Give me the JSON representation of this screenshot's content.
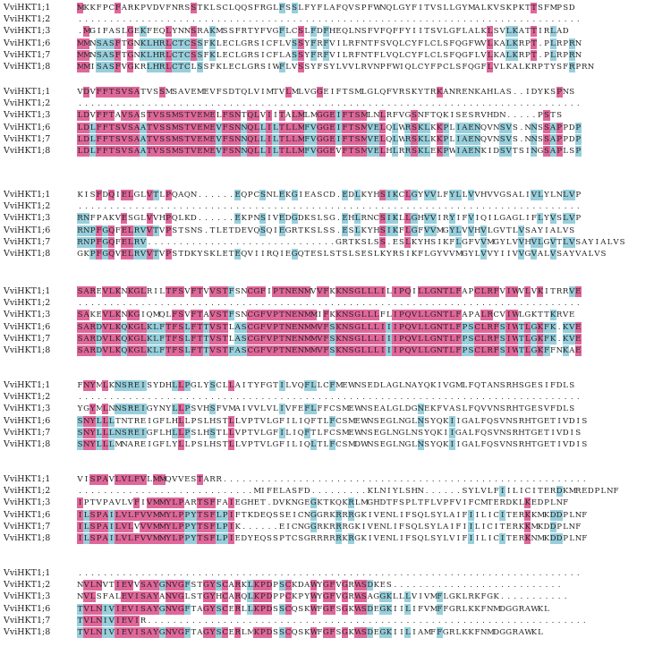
{
  "alignment": {
    "colors": {
      "identical": "#e0679a",
      "similar": "#97cfdc",
      "background": "#ffffff"
    },
    "blocks": [
      {
        "rows": [
          {
            "name": "VviHKT1;1",
            "seq": "MKKFPCFARKPVDVFNRSSTKLSCLQQSFRGLFSSLFYFLAFQVSPFWNQLGYFITVSLLGYMALKVSKPKTTSFMPSD"
          },
          {
            "name": "VviHKT1;2",
            "seq": "................................................................................"
          },
          {
            "name": "VviHKT1;3",
            "seq": ".MGIFASLGEKFEQLYNNSRAKMSSFRTYFVGFLCSLFDFHEQLNSFVFQFFYIITSVLGFLALKLSVLKATTIRLAD"
          },
          {
            "name": "VviHKT1;6",
            "seq": "MMNSASFTGNKLHRLCTCSSFKLECLGRSICFLVSSYFRFVILRFNTFSVQLCYFLCLSFQGFWVLKALKRPT.PLRPRN"
          },
          {
            "name": "VviHKT1;7",
            "seq": "MMNSASFTGNKLHRLCTCSSFKLECLGRSICFLASSYFRFVILRFNTFLVQLCYFLCLSFQGFLVLKALKRPT.PLRPRN"
          },
          {
            "name": "VviHKT1;8",
            "seq": "MMISASFVGKRLHRLCTCLSSFKLECLGRSIWFLVSSYFSYLVVLRVNPFWIQLCYFPCLSFQGFLVLKALKRPTYSFRPRN"
          }
        ]
      },
      {
        "rows": [
          {
            "name": "VviHKT1;1",
            "seq": "VDVFFTSVSATVSSMSAVEMEVFSDTQLVIMTVLMLVGGEIFTSMLGLQFVRSKYTRKANRENKAHLAS..IDYKSPNS"
          },
          {
            "name": "VviHKT1;2",
            "seq": "................................................................................"
          },
          {
            "name": "VviHKT1;3",
            "seq": "LDVFFTAVSASTVSSMSTVEMELFSNTQLVIITALMLMGGEIFTSMLNLRFVGSNFTQKISESRVHDN.....PSTS"
          },
          {
            "name": "VviHKT1;6",
            "seq": "LDLFFTSVSAATVSSMSTVEMEVFSNNQLLILTLLMFVGGEIFTSMVELQLWRSKLKKPLIAENQVNSVS.NNSSAPPDP"
          },
          {
            "name": "VviHKT1;7",
            "seq": "LDLFFTSVSAATVSSMSTVEMEVFSNNQLLILTLLMFVGGEIFTSMVELQLWRSKLKKPLIAENQVNSVS.NNSSAPPDP"
          },
          {
            "name": "VviHKT1;8",
            "seq": "LDLFFTSVSAATVSSMSTVEMEVFSNNQLLILTLLMFVGGEVFTSMVELHLRRSKLEKPWIAENKIDSVTSINGSAPLSP"
          }
        ]
      },
      {
        "rows": [
          {
            "name": "VviHKT1;1",
            "seq": "KISFDQIELGLVTLPQAQN......EQPCSNLEKGIEASCD.EDLKYHSIKCLGYVVLFYLLVVHVVGSALIVLYLNLVP"
          },
          {
            "name": "VviHKT1;2",
            "seq": "................................................................................"
          },
          {
            "name": "VviHKT1;3",
            "seq": "RNFPAKVESGLVVHPQLKD......EKPNSIVEDGDKSLSG.EHLRNCSIKLLGHVVIRYIFVIQILGAGLIFLYVSLVP"
          },
          {
            "name": "VviHKT1;6",
            "seq": "RNPFGQFELRVVTVPSTSNS.TLETDEVQSQIEGRTKSLSS.ESLKYHSIKFLGFVVMGYLVVHVLGVTLVSAYIALVS"
          },
          {
            "name": "VviHKT1;7",
            "seq": "RNPFGQFELRV..............................GRTKSLSS.ESLKYHSIKFLGFVVMGYLVVHVLGVTLVSAYIALVS"
          },
          {
            "name": "VviHKT1;8",
            "seq": "GKPFGQVELRVVTVPSTDKYSKLETEQVIIRQIEGQTESLSTSLSESLKYRSIKFLGYVVMGYLVVYIIVVGVALVSAYVALVS"
          }
        ]
      },
      {
        "rows": [
          {
            "name": "VviHKT1;1",
            "seq": "SAREVLKNKGLRILTFSVFTVVSTFSNCGFIPTNENMVVFKKNSGLLLILIPQILLGNTLFAPCLRFVIWVLVKITRRVE"
          },
          {
            "name": "VviHKT1;2",
            "seq": "................................................................................"
          },
          {
            "name": "VviHKT1;3",
            "seq": "SAKEVLKNKGIQMQLFSVFTAVSTFSNCGFVPTNENMMIFKKNSGLLLFLIPQVLLGNTLFAPALRCVIWLGKTTKRVE"
          },
          {
            "name": "VviHKT1;6",
            "seq": "SARDVLKQKGLKLFTFSLFTTVSTLASCGFVPTNENMMVFSKNSGLLLIIIPQVLLGNTLFPSCLRFSIWTLGKFK.KVE"
          },
          {
            "name": "VviHKT1;7",
            "seq": "SARDVLKQKGLKLFTFSLFTTVSTLASCGFVPTNENMMVFSKNSGLLLIIIPQVLLGNTLFPSCLRFSIWTLGKFK.KVE"
          },
          {
            "name": "VviHKT1;8",
            "seq": "SARDVLKQKGLKLFTFSLFTTVSTFASCGFVPTNENMMVFSKNSGLLLIIIPQVLLGNTLFPSCLRFSIWTLGKFFNKAE"
          }
        ]
      },
      {
        "rows": [
          {
            "name": "VviHKT1;1",
            "seq": "FNYMLKNSREISYDHLLPGLYSCLLAITYFGTILVQFLLCFMEWNSEDLAGLNAYQKIVGMLFQTANSRHSGESIFDLS"
          },
          {
            "name": "VviHKT1;2",
            "seq": "................................................................................"
          },
          {
            "name": "VviHKT1;3",
            "seq": "YGYMLNNSREIGYNYLLPSVHSFVMAIVVLVLIVFEFLFFCSMEWNSEALGLDGNEKFVASLFQVVNSRHTGESVFDLS"
          },
          {
            "name": "VviHKT1;6",
            "seq": "SNYLLLTNTREIGFLHLLPSLHSTLLVPTVLGFILIQFTLFCSMEWNSEGLNGLNSYQKIIGALFQSVNSRHTGETIVDIS"
          },
          {
            "name": "VviHKT1;7",
            "seq": "SNYLLLNSREIGFLHLLPSLHSTLLVPTVLGFILIQFTLFCSMEWNSEGLNGLNSYQKIIGALFQSVNSRHTGETIVDIS"
          },
          {
            "name": "VviHKT1;8",
            "seq": "SNYLLLMNAREIGFLYLLPSLHSTLLVPTVLGFILIQLTLFCSMDWNSEGLNGLNSYQKIIGALFQSVNSRHTGETIVDIS"
          }
        ]
      },
      {
        "rows": [
          {
            "name": "VviHKT1;1",
            "seq": "VISPAVLVLFVLMMQVVESTARR.........................................................."
          },
          {
            "name": "VviHKT1;2",
            "seq": "............................MIFELASFD.........KLNIYLSHN......SYLVLFIILICITERDKMREDPLNF"
          },
          {
            "name": "VviHKT1;3",
            "seq": "IPTVPAVLVFIVMMYLPARTSFFAIEGHET.DVKNGEGKTKQKRLMGHDTFSPLTFLVPFVIFCMTERDKLKEDPLNF"
          },
          {
            "name": "VviHKT1;6",
            "seq": "ILSPAILVLFVVMMYLPPYTSFLPIFTKDEQSSEICNGGRKRRRGKIVENLIFSQLSYLAIFIILICITERKKMKDDPLNF"
          },
          {
            "name": "VviHKT1;7",
            "seq": "ILSPAILVLVVVMMYLPPYTSFLPIK......EICNGGRKRRRGKIVENLIFSQLSYLAIFIILICITERKKMKDDPLNF"
          },
          {
            "name": "VviHKT1;8",
            "seq": "ILSPAILVLFVVMMYLPPYTSFLPIEDYEQSSPTCSGRRRRRKRGKIVENLIFSQLSYLVIFIILICITERKNMKDDPLNF"
          }
        ]
      },
      {
        "rows": [
          {
            "name": "VviHKT1;1",
            "seq": "................................................................................"
          },
          {
            "name": "VviHKT1;2",
            "seq": "NVLNVTIEVVSAYGNVGFSTGYSCARKLKPDPSCKDAWYGFVGRWSDKES..........................."
          },
          {
            "name": "VviHKT1;3",
            "seq": "NVLSFALEVISAYANVGLSTGYHCARQLKPDPPCKPYWYGFVGRWSAGGKLLLVIVMFLGKLRKFGK..........."
          },
          {
            "name": "VviHKT1;6",
            "seq": "TVLNIVIEVISAYGNVGFTAGYSCERLLKPDSSCQSKWFGFSGKWSDEGKIILIFVMFFGRLKKFNMDGGRAWKL"
          },
          {
            "name": "VviHKT1;7",
            "seq": "TVLNIVIEVIR......................................................................"
          },
          {
            "name": "VviHKT1;8",
            "seq": "TVLNIVIEVISAYGNVGFTAGYSCERLMKPDSSCQSKWFGFSGKWSDEGKIILIAMFFGRLKKFNMDGGRAWKL"
          }
        ]
      }
    ]
  }
}
